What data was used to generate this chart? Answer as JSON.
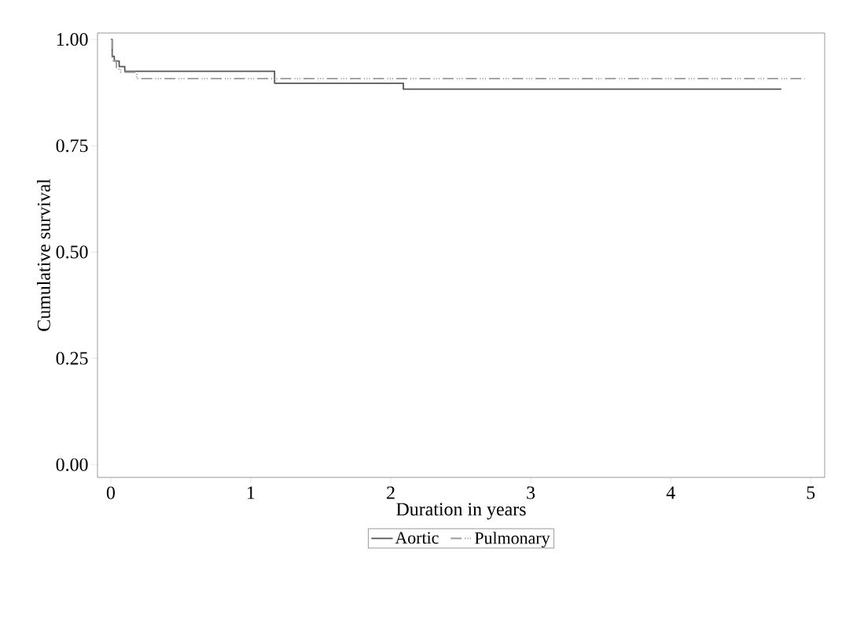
{
  "chart_data": {
    "type": "step",
    "xlabel": "Duration in years",
    "ylabel": "Cumulative survival",
    "series": [
      {
        "name": "Aortic",
        "color": "#555555",
        "line_style": "solid",
        "x": [
          0,
          0.01,
          0.025,
          0.06,
          0.1,
          1.17,
          2.09,
          4.79
        ],
        "values": [
          1.0,
          0.96,
          0.949,
          0.936,
          0.925,
          0.897,
          0.883,
          0.883
        ]
      },
      {
        "name": "Pulmonary",
        "color": "#999999",
        "line_style": "dashdotdot",
        "x": [
          0,
          0.01,
          0.04,
          0.07,
          0.185,
          4.96
        ],
        "values": [
          1.0,
          0.95,
          0.93,
          0.923,
          0.908,
          0.908
        ]
      }
    ],
    "xlim": [
      -0.095,
      5.1
    ],
    "ylim": [
      -0.03,
      1.015
    ],
    "xticks": [
      0,
      1,
      2,
      3,
      4,
      5
    ],
    "yticks": [
      {
        "value": 0,
        "label": "0.00"
      },
      {
        "value": 0.25,
        "label": "0.25"
      },
      {
        "value": 0.5,
        "label": "0.50"
      },
      {
        "value": 0.75,
        "label": "0.75"
      },
      {
        "value": 1,
        "label": "1.00"
      }
    ],
    "grid": false,
    "legend": "bottom"
  }
}
